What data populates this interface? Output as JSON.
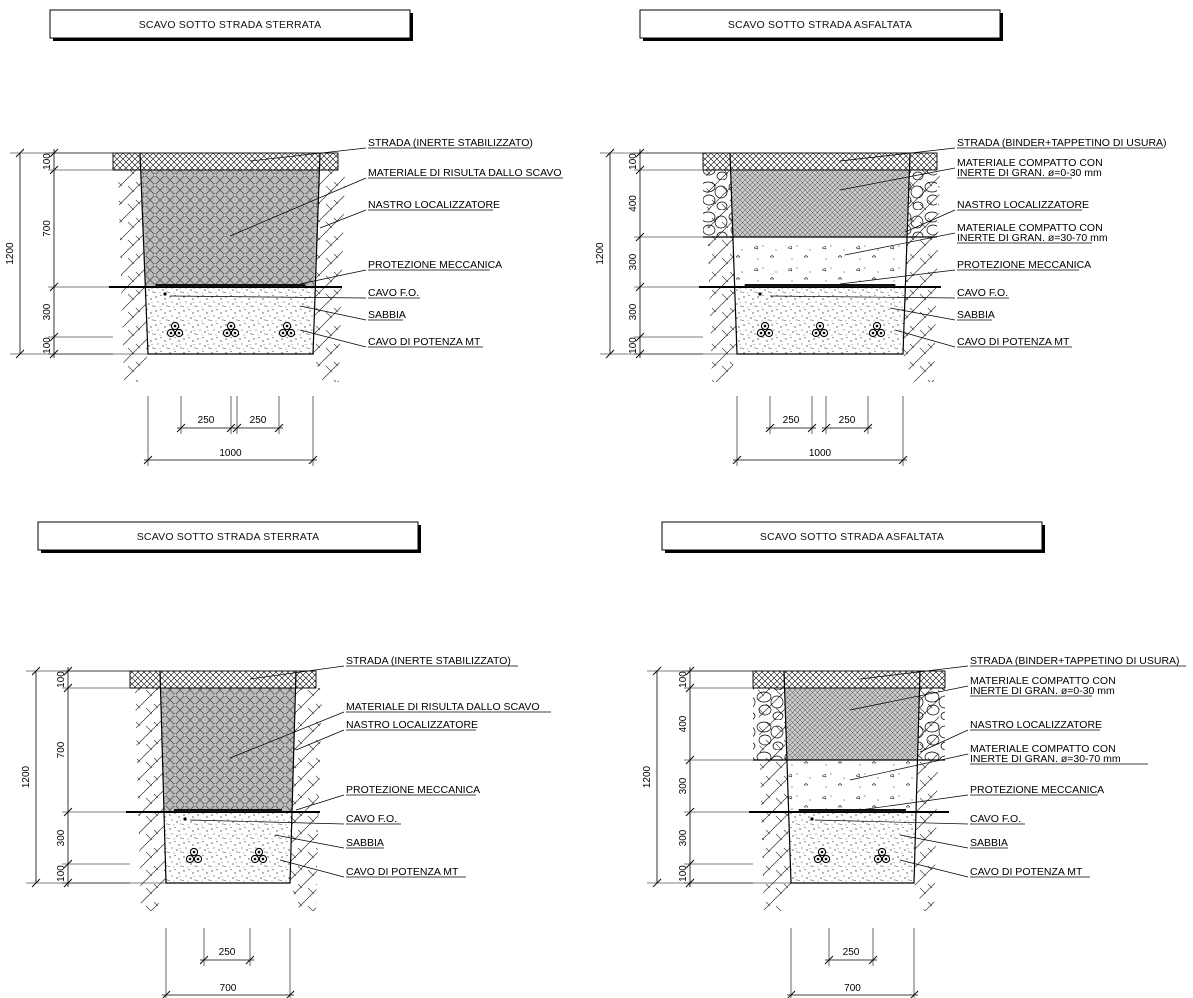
{
  "sections": [
    {
      "title": "SCAVO SOTTO STRADA STERRATA",
      "total_depth": "1200",
      "layer_dims": [
        "100",
        "700",
        "300",
        "100"
      ],
      "labels": [
        "STRADA (INERTE STABILIZZATO)",
        "MATERIALE DI RISULTA DALLO SCAVO",
        "NASTRO LOCALIZZATORE",
        "PROTEZIONE MECCANICA",
        "CAVO F.O.",
        "SABBIA",
        "CAVO DI POTENZA MT"
      ],
      "width_dims": [
        "250",
        "250"
      ],
      "total_width": "1000"
    },
    {
      "title": "SCAVO SOTTO STRADA ASFALTATA",
      "total_depth": "1200",
      "layer_dims": [
        "100",
        "400",
        "300",
        "300",
        "100"
      ],
      "labels": [
        "STRADA (BINDER+TAPPETINO DI USURA)",
        "MATERIALE COMPATTO CON",
        "INERTE DI GRAN. ø=0-30 mm",
        "NASTRO LOCALIZZATORE",
        "MATERIALE COMPATTO CON",
        "INERTE DI GRAN. ø=30-70 mm",
        "PROTEZIONE MECCANICA",
        "CAVO F.O.",
        "SABBIA",
        "CAVO DI POTENZA MT"
      ],
      "width_dims": [
        "250",
        "250"
      ],
      "total_width": "1000"
    },
    {
      "title": "SCAVO SOTTO STRADA STERRATA",
      "total_depth": "1200",
      "layer_dims": [
        "100",
        "700",
        "300",
        "100"
      ],
      "labels": [
        "STRADA (INERTE STABILIZZATO)",
        "MATERIALE DI RISULTA DALLO SCAVO",
        "NASTRO LOCALIZZATORE",
        "PROTEZIONE MECCANICA",
        "CAVO F.O.",
        "SABBIA",
        "CAVO DI POTENZA MT"
      ],
      "width_dims": [
        "250"
      ],
      "total_width": "700"
    },
    {
      "title": "SCAVO SOTTO STRADA ASFALTATA",
      "total_depth": "1200",
      "layer_dims": [
        "100",
        "400",
        "300",
        "300",
        "100"
      ],
      "labels": [
        "STRADA (BINDER+TAPPETINO DI USURA)",
        "MATERIALE COMPATTO CON",
        "INERTE DI GRAN. ø=0-30 mm",
        "NASTRO LOCALIZZATORE",
        "MATERIALE COMPATTO CON",
        "INERTE DI GRAN. ø=30-70 mm",
        "PROTEZIONE MECCANICA",
        "CAVO F.O.",
        "SABBIA",
        "CAVO DI POTENZA MT"
      ],
      "width_dims": [
        "250"
      ],
      "total_width": "700"
    }
  ]
}
